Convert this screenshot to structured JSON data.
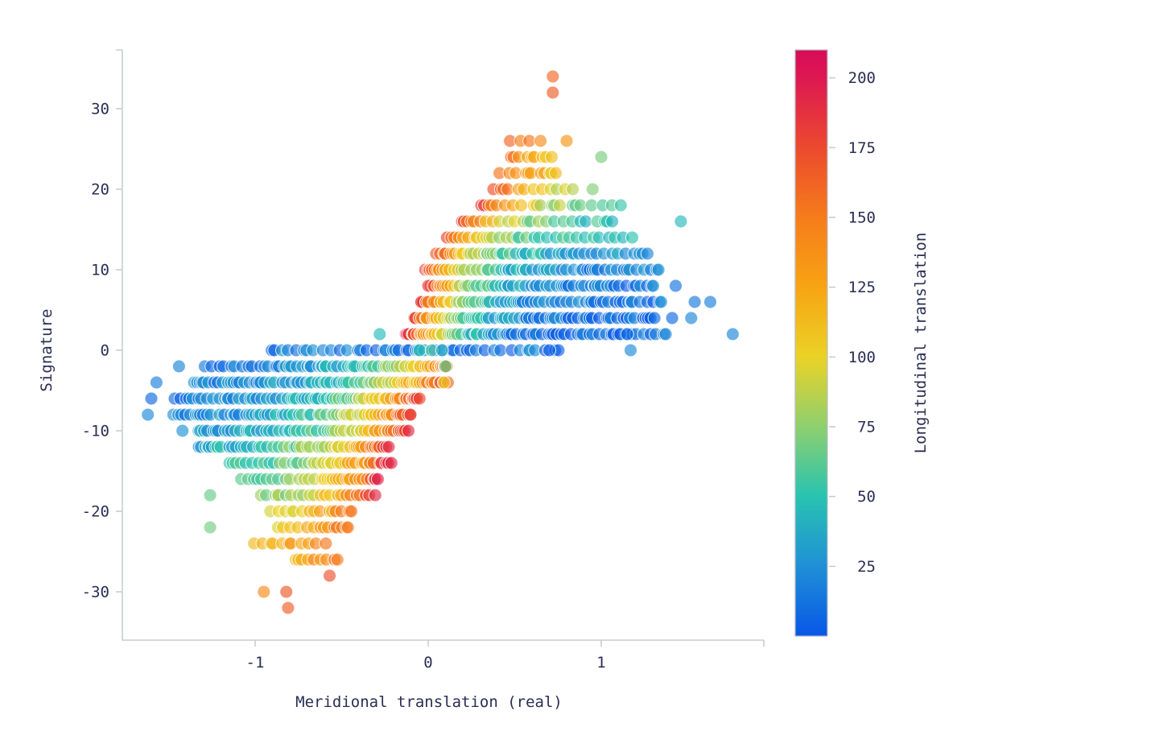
{
  "figure": {
    "background": "#ffffff",
    "text_color": "#2a2e52",
    "axis_color": "#c9ccd3"
  },
  "chart_data": {
    "type": "scatter",
    "title": "",
    "xlabel": "Meridional translation (real)",
    "ylabel": "Signature",
    "colorbar_label": "Longitudinal translation",
    "x_ticks": [
      -1,
      0,
      1
    ],
    "y_ticks": [
      30,
      20,
      10,
      0,
      -10,
      -20,
      -30
    ],
    "xlim": [
      -1.77,
      1.94
    ],
    "ylim": [
      -36,
      37
    ],
    "grid": false,
    "legend_position": "right-colorbar",
    "marker": {
      "radius": 8,
      "opacity": 0.65,
      "stroke": "rgba(255,255,255,0.85)",
      "stroke_width": 1
    },
    "colorbar": {
      "min": 0,
      "max": 210,
      "ticks": [
        25,
        50,
        75,
        100,
        125,
        150,
        175,
        200
      ]
    },
    "colormap": [
      [
        0,
        "#0857e7"
      ],
      [
        25,
        "#1f90d6"
      ],
      [
        50,
        "#28c3b1"
      ],
      [
        75,
        "#8ed06e"
      ],
      [
        100,
        "#ebd226"
      ],
      [
        125,
        "#f7a413"
      ],
      [
        150,
        "#f67c1b"
      ],
      [
        175,
        "#eb4a2e"
      ],
      [
        200,
        "#dd1853"
      ],
      [
        210,
        "#d60c56"
      ]
    ],
    "rows_format": [
      "signature",
      "x_min",
      "x_max",
      "count",
      "color_left",
      "color_right",
      "density_skew",
      "color_decay"
    ],
    "rows": [
      [
        26,
        0.44,
        0.68,
        4,
        168,
        135,
        1.0,
        0.8
      ],
      [
        24,
        0.45,
        0.73,
        6,
        168,
        100,
        1.0,
        0.6
      ],
      [
        22,
        0.4,
        0.76,
        8,
        172,
        95,
        1.0,
        0.6
      ],
      [
        20,
        0.37,
        0.87,
        11,
        175,
        70,
        1.1,
        0.5
      ],
      [
        18,
        0.3,
        1.15,
        16,
        175,
        48,
        1.15,
        0.38
      ],
      [
        16,
        0.19,
        1.1,
        21,
        178,
        42,
        1.2,
        0.3
      ],
      [
        14,
        0.1,
        1.2,
        29,
        175,
        38,
        1.25,
        0.26
      ],
      [
        12,
        0.05,
        1.29,
        38,
        175,
        25,
        1.3,
        0.22
      ],
      [
        10,
        -0.01,
        1.34,
        45,
        175,
        16,
        1.3,
        0.2
      ],
      [
        8,
        0.0,
        1.31,
        48,
        186,
        12,
        1.35,
        0.19
      ],
      [
        6,
        -0.05,
        1.35,
        52,
        190,
        10,
        1.4,
        0.18
      ],
      [
        4,
        -0.08,
        1.33,
        55,
        192,
        8,
        1.45,
        0.17
      ],
      [
        2,
        -0.12,
        1.38,
        58,
        200,
        6,
        1.5,
        0.16
      ],
      [
        0,
        -0.93,
        0.75,
        34,
        18,
        8,
        1.0,
        1.0
      ],
      [
        -2,
        -1.3,
        0.1,
        54,
        8,
        150,
        0.75,
        0.3
      ],
      [
        -4,
        -1.38,
        0.09,
        58,
        10,
        170,
        0.75,
        0.3
      ],
      [
        -6,
        -1.48,
        -0.05,
        58,
        8,
        180,
        0.75,
        0.3
      ],
      [
        -8,
        -1.5,
        -0.1,
        54,
        12,
        182,
        0.75,
        0.3
      ],
      [
        -10,
        -1.35,
        -0.12,
        48,
        20,
        185,
        0.78,
        0.3
      ],
      [
        -12,
        -1.35,
        -0.23,
        40,
        30,
        188,
        0.78,
        0.32
      ],
      [
        -14,
        -1.17,
        -0.23,
        34,
        42,
        192,
        0.8,
        0.34
      ],
      [
        -16,
        -1.1,
        -0.3,
        26,
        46,
        182,
        0.8,
        0.38
      ],
      [
        -18,
        -0.98,
        -0.31,
        22,
        55,
        192,
        0.85,
        0.42
      ],
      [
        -20,
        -0.93,
        -0.42,
        13,
        80,
        170,
        0.9,
        0.55
      ],
      [
        -22,
        -0.9,
        -0.45,
        11,
        78,
        170,
        0.9,
        0.6
      ],
      [
        -24,
        -1.04,
        -0.58,
        9,
        88,
        160,
        0.9,
        0.7
      ],
      [
        -26,
        -0.79,
        -0.53,
        7,
        95,
        168,
        1.0,
        0.8
      ]
    ],
    "outliers_format": [
      "x",
      "signature",
      "color_value"
    ],
    "outliers": [
      [
        0.72,
        34,
        160
      ],
      [
        0.72,
        32,
        166
      ],
      [
        0.8,
        26,
        135
      ],
      [
        1.0,
        24,
        70
      ],
      [
        0.95,
        20,
        72
      ],
      [
        1.46,
        16,
        45
      ],
      [
        1.43,
        8,
        12
      ],
      [
        1.54,
        6,
        15
      ],
      [
        1.63,
        6,
        18
      ],
      [
        1.41,
        4,
        8
      ],
      [
        1.52,
        4,
        20
      ],
      [
        1.76,
        2,
        20
      ],
      [
        1.11,
        2,
        4
      ],
      [
        1.15,
        2,
        6
      ],
      [
        -0.28,
        2,
        45
      ],
      [
        1.17,
        0,
        22
      ],
      [
        0.7,
        0,
        3
      ],
      [
        -0.05,
        0,
        48
      ],
      [
        0.02,
        0,
        58
      ],
      [
        0.08,
        0,
        42
      ],
      [
        0.1,
        -2,
        60
      ],
      [
        -1.44,
        -2,
        20
      ],
      [
        -1.57,
        -4,
        18
      ],
      [
        0.09,
        -4,
        100
      ],
      [
        -1.6,
        -6,
        8
      ],
      [
        -1.62,
        -8,
        22
      ],
      [
        -1.42,
        -10,
        25
      ],
      [
        -1.26,
        -18,
        65
      ],
      [
        -1.26,
        -22,
        68
      ],
      [
        -0.57,
        -28,
        172
      ],
      [
        -0.95,
        -30,
        140
      ],
      [
        -0.82,
        -30,
        168
      ],
      [
        -0.81,
        -32,
        165
      ]
    ]
  }
}
